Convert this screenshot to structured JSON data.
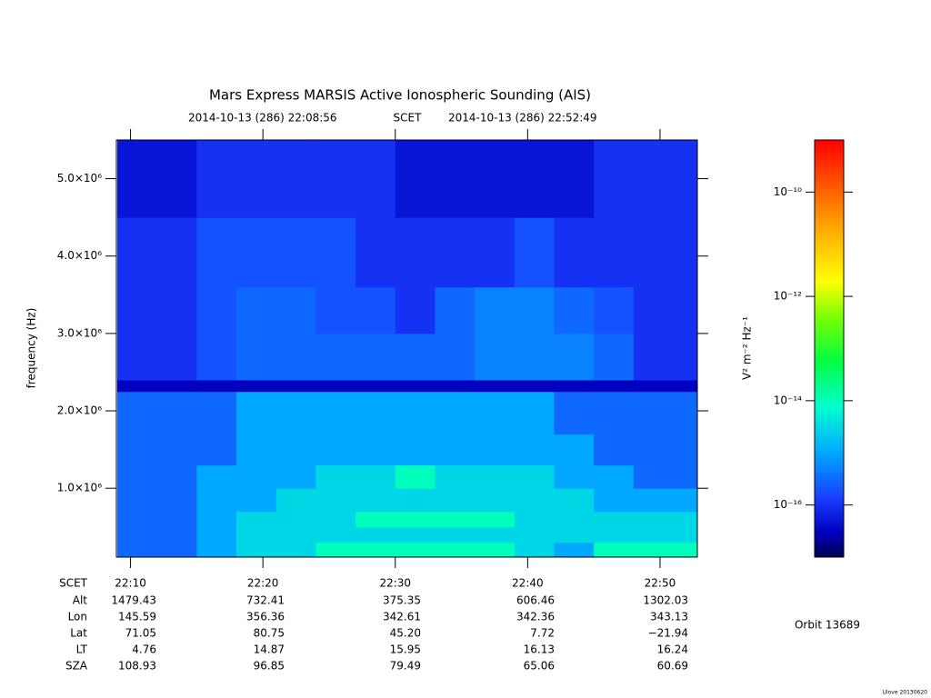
{
  "chart_data": {
    "type": "heatmap",
    "title": "Mars Express MARSIS Active Ionospheric Sounding (AIS)",
    "subtitle_start": "2014-10-13 (286) 22:08:56",
    "subtitle_label": "SCET",
    "subtitle_end": "2014-10-13 (286) 22:52:49",
    "y_label": "frequency (Hz)",
    "xlim": [
      1328.93,
      1372.82
    ],
    "xticks": [
      {
        "value": 1330,
        "label": "22:10"
      },
      {
        "value": 1340,
        "label": "22:20"
      },
      {
        "value": 1350,
        "label": "22:30"
      },
      {
        "value": 1360,
        "label": "22:40"
      },
      {
        "value": 1370,
        "label": "22:50"
      }
    ],
    "ylim": [
      110000,
      5500000
    ],
    "yticks": [
      {
        "value": 1000000,
        "label": "1.0×10⁶"
      },
      {
        "value": 2000000,
        "label": "2.0×10⁶"
      },
      {
        "value": 3000000,
        "label": "3.0×10⁶"
      },
      {
        "value": 4000000,
        "label": "4.0×10⁶"
      },
      {
        "value": 5000000,
        "label": "5.0×10⁶"
      }
    ],
    "x_bins": [
      1329,
      1332,
      1335,
      1338,
      1341,
      1344,
      1347,
      1350,
      1353,
      1356,
      1359,
      1362,
      1365,
      1368,
      1371,
      1372.8
    ],
    "y_bins": [
      110000,
      300000,
      500000,
      700000,
      1000000,
      1300000,
      1700000,
      2250000,
      2400000,
      3000000,
      3600000,
      4500000,
      5500000
    ],
    "z": [
      [
        3e-16,
        3e-16,
        1e-15,
        3e-15,
        3e-15,
        1e-14,
        1e-14,
        1e-14,
        1e-14,
        1e-14,
        3e-15,
        1e-15,
        1e-14,
        1e-14,
        1e-14
      ],
      [
        3e-16,
        3e-16,
        1e-15,
        3e-15,
        3e-15,
        3e-15,
        3e-15,
        3e-15,
        3e-15,
        3e-15,
        3e-15,
        3e-15,
        3e-15,
        3e-15,
        3e-15
      ],
      [
        3e-16,
        3e-16,
        1e-15,
        3e-15,
        3e-15,
        3e-15,
        1e-14,
        1e-14,
        1e-14,
        1e-14,
        3e-15,
        3e-15,
        3e-15,
        3e-15,
        3e-15
      ],
      [
        3e-16,
        3e-16,
        1e-15,
        1e-15,
        3e-15,
        3e-15,
        3e-15,
        3e-15,
        3e-15,
        3e-15,
        3e-15,
        3e-15,
        1e-15,
        1e-15,
        1e-15
      ],
      [
        3e-16,
        3e-16,
        1e-15,
        1e-15,
        1e-15,
        3e-15,
        3e-15,
        1e-14,
        3e-15,
        3e-15,
        3e-15,
        1e-15,
        1e-15,
        3e-16,
        3e-16
      ],
      [
        3e-16,
        3e-16,
        3e-16,
        1e-15,
        1e-15,
        1e-15,
        1e-15,
        1e-15,
        1e-15,
        1e-15,
        1e-15,
        1e-15,
        3e-16,
        3e-16,
        3e-16
      ],
      [
        3e-16,
        3e-16,
        3e-16,
        1e-15,
        1e-15,
        1e-15,
        1e-15,
        1e-15,
        1e-15,
        1e-15,
        1e-15,
        3e-16,
        3e-16,
        3e-16,
        3e-16
      ],
      [
        3e-17,
        3e-17,
        3e-17,
        3e-17,
        3e-17,
        3e-17,
        3e-17,
        3e-17,
        3e-17,
        3e-17,
        3e-17,
        3e-17,
        3e-17,
        3e-17,
        3e-17
      ],
      [
        1e-16,
        1e-16,
        2e-16,
        3e-16,
        3e-16,
        3e-16,
        3e-16,
        3e-16,
        3e-16,
        5e-16,
        5e-16,
        5e-16,
        3e-16,
        1e-16,
        1e-16
      ],
      [
        1e-16,
        1e-16,
        2e-16,
        3e-16,
        3e-16,
        2e-16,
        2e-16,
        1e-16,
        3e-16,
        5e-16,
        5e-16,
        3e-16,
        2e-16,
        1e-16,
        1e-16
      ],
      [
        1e-16,
        1e-16,
        2e-16,
        2e-16,
        2e-16,
        2e-16,
        1e-16,
        1e-16,
        1e-16,
        1e-16,
        2e-16,
        1e-16,
        1e-16,
        1e-16,
        1e-16
      ],
      [
        5e-17,
        5e-17,
        1e-16,
        1e-16,
        1e-16,
        1e-16,
        1e-16,
        5e-17,
        5e-17,
        5e-17,
        5e-17,
        5e-17,
        1e-16,
        1e-16,
        1e-16
      ]
    ],
    "colorbar": {
      "log": true,
      "lim": [
        1e-17,
        1e-09
      ],
      "label": "V² m⁻² Hz⁻¹",
      "ticks": [
        {
          "value": 1e-10,
          "label": "10⁻¹⁰"
        },
        {
          "value": 1e-12,
          "label": "10⁻¹²"
        },
        {
          "value": 1e-14,
          "label": "10⁻¹⁴"
        },
        {
          "value": 1e-16,
          "label": "10⁻¹⁶"
        }
      ]
    },
    "ephemeris": {
      "scet_label": "SCET",
      "rows": [
        {
          "label": "Alt",
          "values": [
            "1479.43",
            "732.41",
            "375.35",
            "606.46",
            "1302.03"
          ]
        },
        {
          "label": "Lon",
          "values": [
            "145.59",
            "356.36",
            "342.61",
            "342.36",
            "343.13"
          ]
        },
        {
          "label": "Lat",
          "values": [
            "71.05",
            "80.75",
            "45.20",
            "7.72",
            "−21.94"
          ]
        },
        {
          "label": "LT",
          "values": [
            "4.76",
            "14.87",
            "15.95",
            "16.13",
            "16.24"
          ]
        },
        {
          "label": "SZA",
          "values": [
            "108.93",
            "96.85",
            "79.49",
            "65.06",
            "60.69"
          ]
        }
      ]
    },
    "orbit": "Orbit 13689",
    "footer": "Ulove 20130620"
  }
}
